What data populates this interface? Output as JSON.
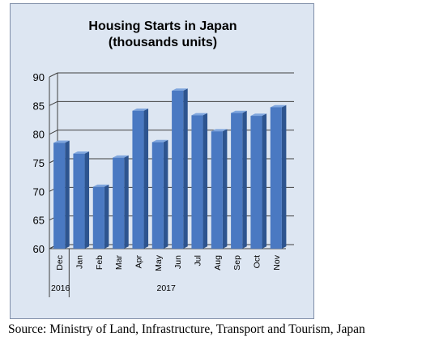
{
  "chart_data": {
    "type": "bar",
    "title": [
      "Housing Starts in Japan",
      "(thousands units)"
    ],
    "categories": [
      "Dec",
      "Jan",
      "Feb",
      "Mar",
      "Apr",
      "May",
      "Jun",
      "Jul",
      "Aug",
      "Sep",
      "Oct",
      "Nov"
    ],
    "year_labels": [
      {
        "label": "2016",
        "from": 0,
        "to": 0
      },
      {
        "label": "2017",
        "from": 1,
        "to": 11
      }
    ],
    "values": [
      78.5,
      76.6,
      70.8,
      75.9,
      84.1,
      78.6,
      87.6,
      83.3,
      80.5,
      83.7,
      83.2,
      84.7
    ],
    "ylim": [
      60,
      90
    ],
    "yticks": [
      "60",
      "65",
      "70",
      "75",
      "80",
      "85",
      "90"
    ],
    "xlabel": "",
    "ylabel": "",
    "grid": true,
    "legend": "none",
    "colors": {
      "bar_front": "#4a79c2",
      "bar_side": "#2d548f",
      "bar_top": "#7fa6de",
      "grid": "#404040",
      "background": "#dde6f2"
    }
  },
  "source": "Source: Ministry of Land, Infrastructure, Transport and Tourism, Japan"
}
